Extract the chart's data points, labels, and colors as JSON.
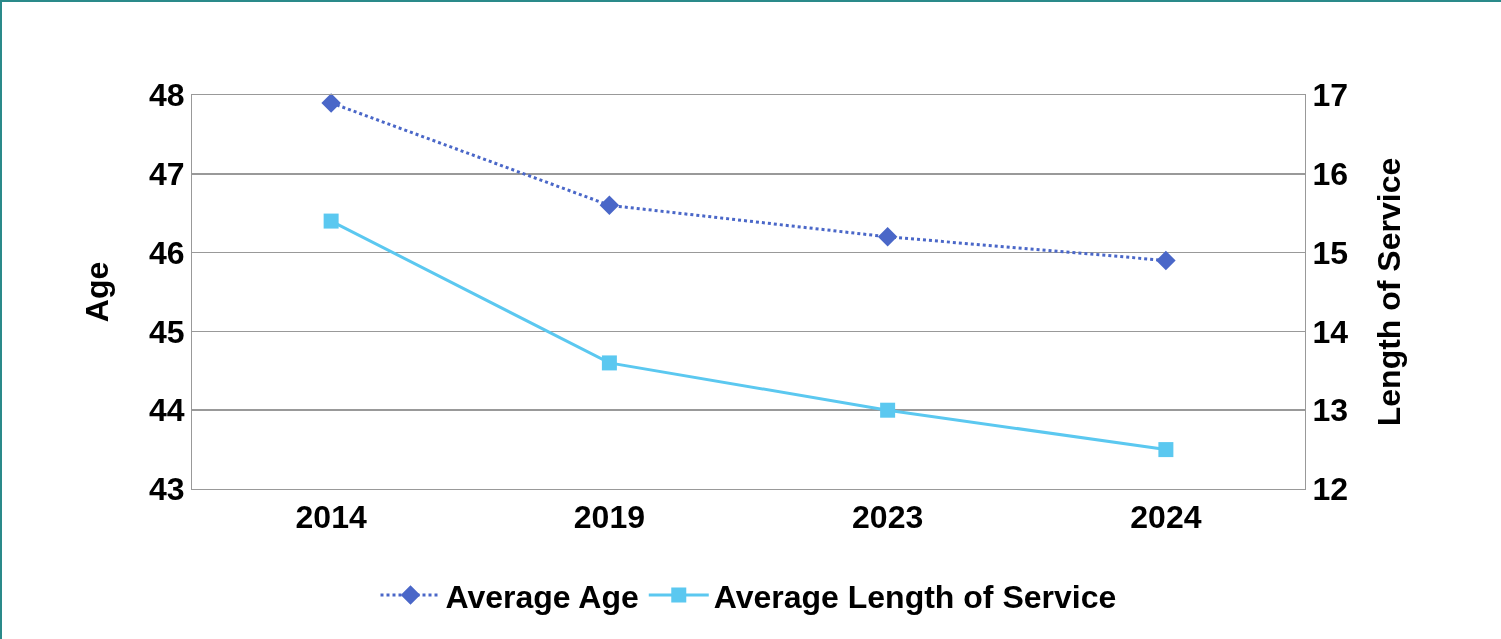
{
  "chart_data": {
    "type": "line",
    "ylabel": "Age",
    "y2label": "Length of Service",
    "categories": [
      "2014",
      "2019",
      "2023",
      "2024"
    ],
    "series": [
      {
        "name": "Average Age",
        "color": "#4a67c8",
        "values": [
          47.9,
          46.6,
          46.2,
          45.9
        ],
        "marker": "diamond",
        "line_style": "dotted"
      },
      {
        "name": "Average Length of Service",
        "color": "#5bc8f0",
        "values": [
          15.4,
          13.6,
          13.0,
          12.5
        ],
        "axis": "y2",
        "marker": "square",
        "line_style": "solid"
      }
    ],
    "ylim": [
      43,
      48
    ],
    "yticks": [
      43,
      44,
      45,
      46,
      47,
      48
    ],
    "y2lim": [
      12,
      17
    ],
    "y2ticks": [
      12,
      13,
      14,
      15,
      16,
      17
    ],
    "grid": "y",
    "legend": "bottom"
  }
}
